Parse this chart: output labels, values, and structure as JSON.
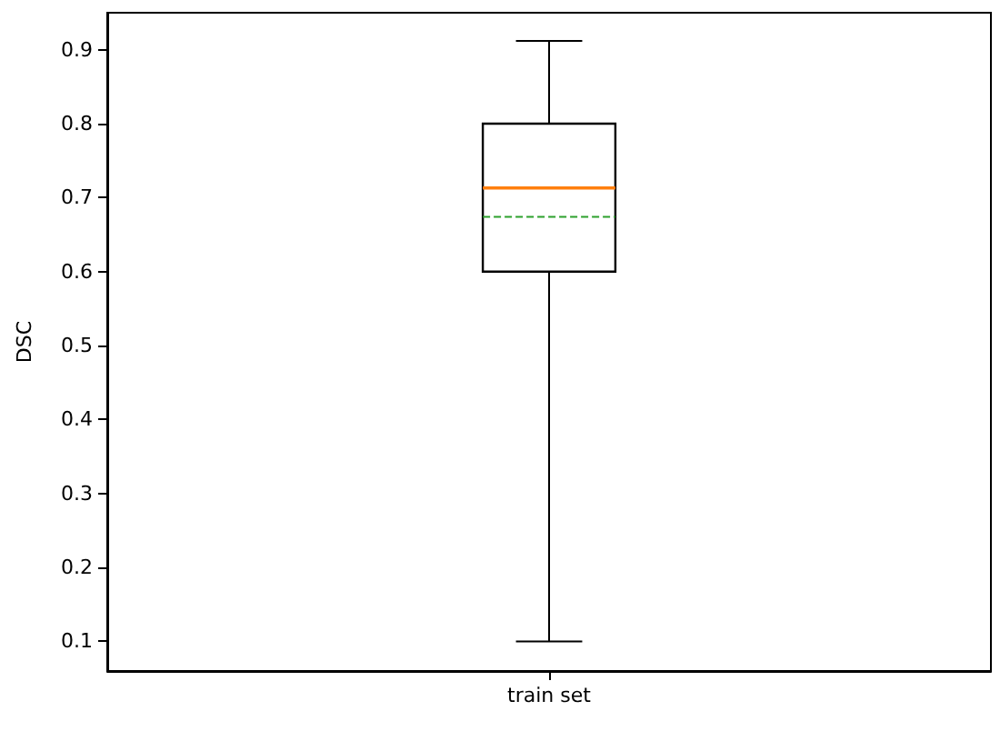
{
  "chart_data": {
    "type": "box",
    "ylabel": "DSC",
    "categories": [
      "train set"
    ],
    "series": [
      {
        "color": "#000000",
        "boxes": [
          {
            "low": 0.1,
            "q1": 0.6,
            "median": 0.713,
            "q3": 0.8,
            "high": 0.912,
            "mean": 0.674
          }
        ]
      }
    ],
    "ylim": [
      0.06,
      0.95
    ],
    "yticks": [
      0.1,
      0.2,
      0.3,
      0.4,
      0.5,
      0.6,
      0.7,
      0.8,
      0.9
    ],
    "grid": false
  }
}
